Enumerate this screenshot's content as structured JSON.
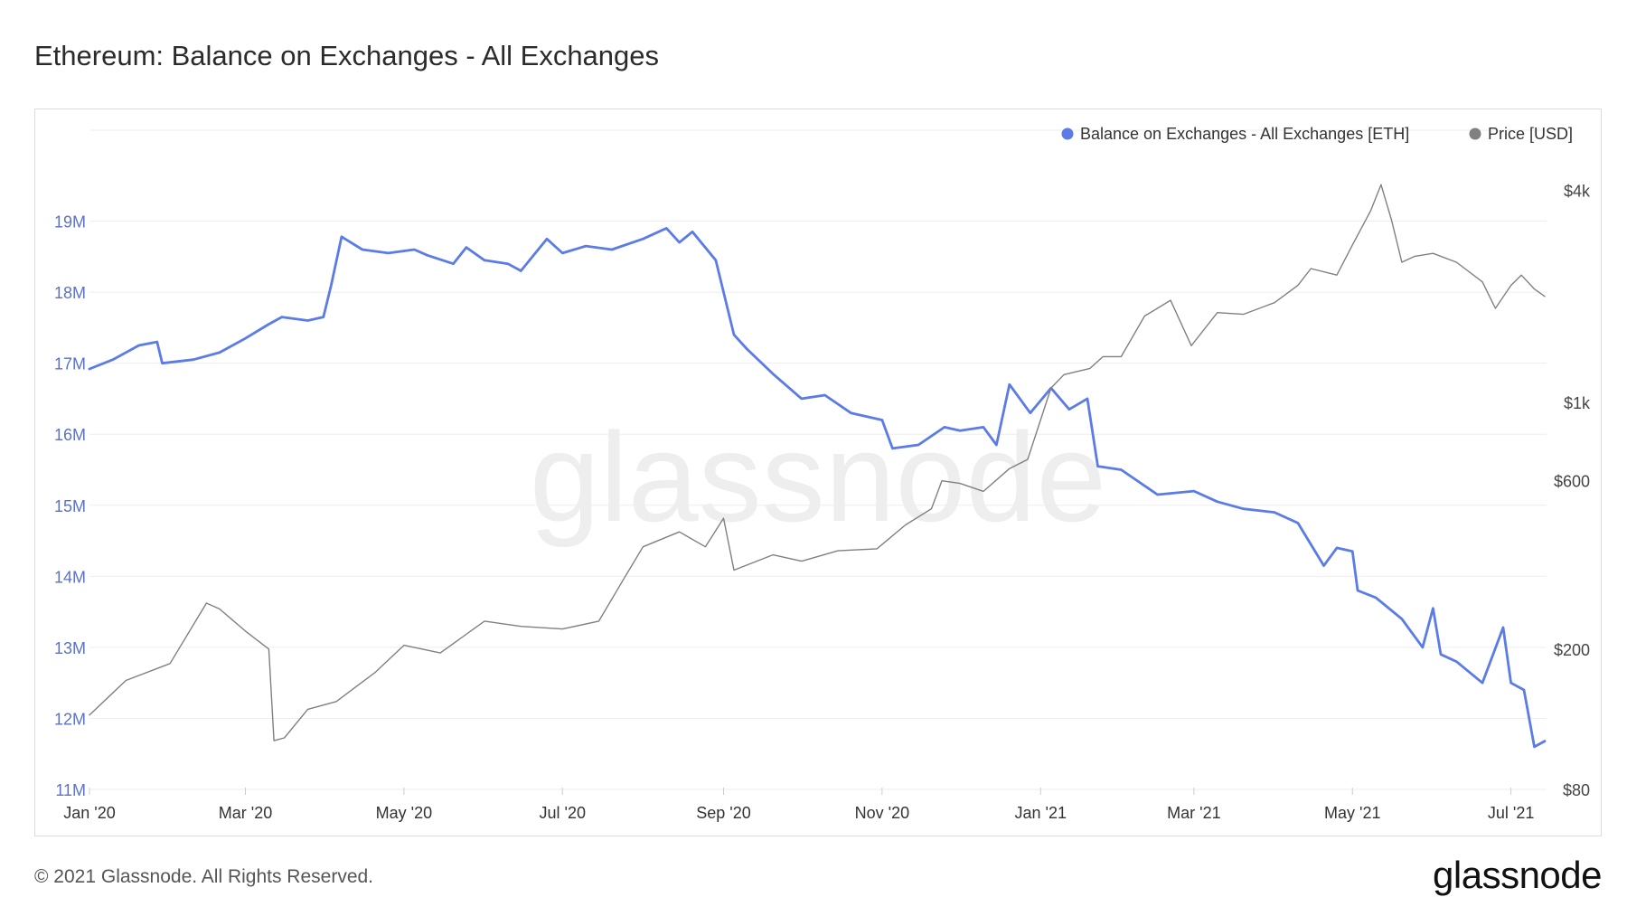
{
  "title": "Ethereum: Balance on Exchanges - All Exchanges",
  "footer": {
    "copyright": "© 2021 Glassnode. All Rights Reserved.",
    "logo": "glassnode"
  },
  "watermark": "glassnode",
  "chart_data": {
    "type": "line",
    "title": "Ethereum: Balance on Exchanges - All Exchanges",
    "grid": true,
    "legend_position": "top-right",
    "x_ticks": [
      "Jan '20",
      "Mar '20",
      "May '20",
      "Jul '20",
      "Sep '20",
      "Nov '20",
      "Jan '21",
      "Mar '21",
      "May '21",
      "Jul '21"
    ],
    "x_tick_dates": [
      "2020-01-01",
      "2020-03-01",
      "2020-05-01",
      "2020-07-01",
      "2020-09-01",
      "2020-11-01",
      "2021-01-01",
      "2021-03-01",
      "2021-05-01",
      "2021-07-01"
    ],
    "x_range": [
      "2020-01-01",
      "2021-07-14"
    ],
    "y_left": {
      "ticks": [
        "11M",
        "12M",
        "13M",
        "14M",
        "15M",
        "16M",
        "17M",
        "18M",
        "19M"
      ],
      "tick_values": [
        11000000,
        12000000,
        13000000,
        14000000,
        15000000,
        16000000,
        17000000,
        18000000,
        19000000
      ],
      "range": [
        11000000,
        20000000
      ],
      "unit": "ETH",
      "color": "#5b7be6"
    },
    "y_right": {
      "ticks": [
        "$80",
        "$200",
        "$600",
        "$1k",
        "$4k"
      ],
      "tick_values": [
        80,
        200,
        600,
        1000,
        4000
      ],
      "scale": "log",
      "unit": "USD",
      "color": "#808080"
    },
    "series": [
      {
        "name": "Balance on Exchanges - All Exchanges [ETH]",
        "axis": "left",
        "color": "#5b7be6",
        "points": [
          [
            "2020-01-01",
            16920000
          ],
          [
            "2020-01-10",
            17050000
          ],
          [
            "2020-01-20",
            17250000
          ],
          [
            "2020-01-27",
            17300000
          ],
          [
            "2020-01-29",
            17000000
          ],
          [
            "2020-02-10",
            17050000
          ],
          [
            "2020-02-20",
            17150000
          ],
          [
            "2020-03-01",
            17350000
          ],
          [
            "2020-03-10",
            17550000
          ],
          [
            "2020-03-15",
            17650000
          ],
          [
            "2020-03-25",
            17600000
          ],
          [
            "2020-03-31",
            17650000
          ],
          [
            "2020-04-03",
            18100000
          ],
          [
            "2020-04-07",
            18780000
          ],
          [
            "2020-04-15",
            18600000
          ],
          [
            "2020-04-25",
            18550000
          ],
          [
            "2020-05-05",
            18600000
          ],
          [
            "2020-05-10",
            18520000
          ],
          [
            "2020-05-20",
            18400000
          ],
          [
            "2020-05-25",
            18630000
          ],
          [
            "2020-06-01",
            18450000
          ],
          [
            "2020-06-10",
            18400000
          ],
          [
            "2020-06-15",
            18300000
          ],
          [
            "2020-06-25",
            18750000
          ],
          [
            "2020-07-01",
            18550000
          ],
          [
            "2020-07-10",
            18650000
          ],
          [
            "2020-07-20",
            18600000
          ],
          [
            "2020-08-01",
            18750000
          ],
          [
            "2020-08-10",
            18900000
          ],
          [
            "2020-08-15",
            18700000
          ],
          [
            "2020-08-20",
            18850000
          ],
          [
            "2020-08-29",
            18450000
          ],
          [
            "2020-09-05",
            17400000
          ],
          [
            "2020-09-10",
            17200000
          ],
          [
            "2020-09-20",
            16850000
          ],
          [
            "2020-10-01",
            16500000
          ],
          [
            "2020-10-10",
            16550000
          ],
          [
            "2020-10-20",
            16300000
          ],
          [
            "2020-11-01",
            16200000
          ],
          [
            "2020-11-05",
            15800000
          ],
          [
            "2020-11-15",
            15850000
          ],
          [
            "2020-11-25",
            16100000
          ],
          [
            "2020-12-01",
            16050000
          ],
          [
            "2020-12-10",
            16100000
          ],
          [
            "2020-12-15",
            15850000
          ],
          [
            "2020-12-20",
            16700000
          ],
          [
            "2020-12-28",
            16300000
          ],
          [
            "2021-01-05",
            16650000
          ],
          [
            "2021-01-12",
            16350000
          ],
          [
            "2021-01-19",
            16500000
          ],
          [
            "2021-01-23",
            15550000
          ],
          [
            "2021-02-01",
            15500000
          ],
          [
            "2021-02-15",
            15150000
          ],
          [
            "2021-03-01",
            15200000
          ],
          [
            "2021-03-10",
            15050000
          ],
          [
            "2021-03-20",
            14950000
          ],
          [
            "2021-04-01",
            14900000
          ],
          [
            "2021-04-10",
            14750000
          ],
          [
            "2021-04-20",
            14150000
          ],
          [
            "2021-04-25",
            14400000
          ],
          [
            "2021-05-01",
            14350000
          ],
          [
            "2021-05-03",
            13800000
          ],
          [
            "2021-05-10",
            13700000
          ],
          [
            "2021-05-20",
            13400000
          ],
          [
            "2021-05-28",
            13000000
          ],
          [
            "2021-06-01",
            13550000
          ],
          [
            "2021-06-04",
            12900000
          ],
          [
            "2021-06-10",
            12800000
          ],
          [
            "2021-06-20",
            12500000
          ],
          [
            "2021-06-28",
            13280000
          ],
          [
            "2021-07-01",
            12500000
          ],
          [
            "2021-07-06",
            12400000
          ],
          [
            "2021-07-10",
            11600000
          ],
          [
            "2021-07-14",
            11680000
          ]
        ]
      },
      {
        "name": "Price [USD]",
        "axis": "right",
        "color": "#808080",
        "points": [
          [
            "2020-01-01",
            130
          ],
          [
            "2020-01-15",
            163
          ],
          [
            "2020-02-01",
            182
          ],
          [
            "2020-02-15",
            270
          ],
          [
            "2020-02-20",
            260
          ],
          [
            "2020-03-01",
            225
          ],
          [
            "2020-03-10",
            200
          ],
          [
            "2020-03-12",
            110
          ],
          [
            "2020-03-16",
            112
          ],
          [
            "2020-03-25",
            135
          ],
          [
            "2020-04-05",
            142
          ],
          [
            "2020-04-20",
            172
          ],
          [
            "2020-05-01",
            205
          ],
          [
            "2020-05-15",
            195
          ],
          [
            "2020-06-01",
            240
          ],
          [
            "2020-06-15",
            232
          ],
          [
            "2020-07-01",
            228
          ],
          [
            "2020-07-15",
            240
          ],
          [
            "2020-07-25",
            320
          ],
          [
            "2020-08-01",
            390
          ],
          [
            "2020-08-15",
            430
          ],
          [
            "2020-08-25",
            390
          ],
          [
            "2020-09-01",
            470
          ],
          [
            "2020-09-05",
            335
          ],
          [
            "2020-09-20",
            370
          ],
          [
            "2020-10-01",
            355
          ],
          [
            "2020-10-15",
            380
          ],
          [
            "2020-10-30",
            385
          ],
          [
            "2020-11-10",
            450
          ],
          [
            "2020-11-20",
            500
          ],
          [
            "2020-11-24",
            600
          ],
          [
            "2020-12-01",
            590
          ],
          [
            "2020-12-10",
            560
          ],
          [
            "2020-12-20",
            650
          ],
          [
            "2020-12-27",
            690
          ],
          [
            "2021-01-05",
            1100
          ],
          [
            "2021-01-10",
            1200
          ],
          [
            "2021-01-20",
            1250
          ],
          [
            "2021-01-25",
            1350
          ],
          [
            "2021-02-01",
            1350
          ],
          [
            "2021-02-10",
            1760
          ],
          [
            "2021-02-20",
            1950
          ],
          [
            "2021-02-28",
            1450
          ],
          [
            "2021-03-10",
            1800
          ],
          [
            "2021-03-20",
            1780
          ],
          [
            "2021-04-01",
            1920
          ],
          [
            "2021-04-10",
            2150
          ],
          [
            "2021-04-15",
            2400
          ],
          [
            "2021-04-25",
            2300
          ],
          [
            "2021-05-01",
            2800
          ],
          [
            "2021-05-08",
            3500
          ],
          [
            "2021-05-12",
            4150
          ],
          [
            "2021-05-16",
            3300
          ],
          [
            "2021-05-20",
            2500
          ],
          [
            "2021-05-25",
            2600
          ],
          [
            "2021-06-01",
            2650
          ],
          [
            "2021-06-10",
            2500
          ],
          [
            "2021-06-20",
            2200
          ],
          [
            "2021-06-25",
            1850
          ],
          [
            "2021-07-01",
            2150
          ],
          [
            "2021-07-05",
            2300
          ],
          [
            "2021-07-10",
            2100
          ],
          [
            "2021-07-14",
            2000
          ]
        ]
      }
    ]
  }
}
